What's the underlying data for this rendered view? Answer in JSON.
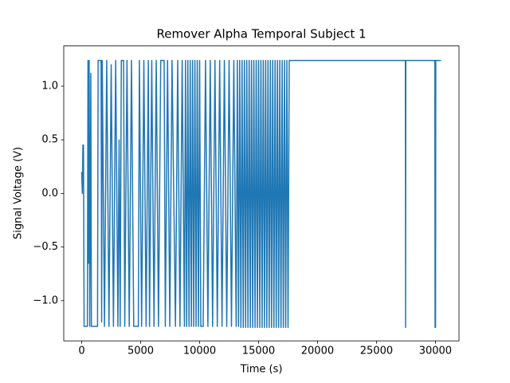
{
  "chart_data": {
    "type": "line",
    "title": "Remover Alpha Temporal Subject 1",
    "x_label": "Time (s)",
    "y_label": "Signal Voltage (V)",
    "x": [
      0,
      50,
      100,
      150,
      200,
      480,
      530,
      580,
      630,
      680,
      770,
      820,
      1340,
      1390,
      1640,
      1690,
      1740,
      1930,
      2120,
      2310,
      2500,
      2690,
      2880,
      3070,
      3170,
      3260,
      3360,
      3550,
      3650,
      3840,
      4030,
      4220,
      4410,
      4800,
      4890,
      5080,
      5270,
      5460,
      5650,
      5750,
      5940,
      6130,
      6320,
      6510,
      6700,
      6990,
      7090,
      7280,
      7470,
      7660,
      7950,
      8140,
      8330,
      8520,
      8710,
      8800,
      8900,
      9000,
      9100,
      9200,
      9300,
      9400,
      9500,
      9600,
      9700,
      9800,
      9900,
      10000,
      10100,
      10300,
      10500,
      10700,
      10900,
      11100,
      11300,
      11500,
      11700,
      11900,
      12100,
      12300,
      12500,
      12700,
      12900,
      13100,
      13200,
      13300,
      13400,
      13500,
      13600,
      13700,
      13800,
      13900,
      14000,
      14100,
      14200,
      14300,
      14400,
      14500,
      14600,
      14700,
      14800,
      14900,
      15000,
      15100,
      15200,
      15300,
      15400,
      15500,
      15600,
      15700,
      15800,
      15900,
      16000,
      16100,
      16200,
      16300,
      16400,
      16500,
      16600,
      16700,
      16800,
      16900,
      17000,
      17100,
      17200,
      17300,
      17400,
      17500,
      17600,
      27450,
      27470,
      27490,
      29950,
      29970,
      29990,
      30010,
      30030,
      30470
    ],
    "series": [
      {
        "color": "#1f77b4",
        "values": [
          0.2,
          0.0,
          0.45,
          0.45,
          -1.24,
          -1.24,
          1.24,
          -0.65,
          1.24,
          -1.24,
          1.12,
          -1.24,
          -1.24,
          1.24,
          1.24,
          -1.2,
          1.24,
          -1.24,
          1.24,
          -1.24,
          1.2,
          -1.24,
          1.24,
          -1.24,
          0.5,
          -1.24,
          1.24,
          1.24,
          -1.24,
          1.24,
          -1.24,
          1.24,
          -1.24,
          -1.24,
          1.24,
          -1.24,
          1.24,
          -1.24,
          1.24,
          -1.24,
          1.24,
          -1.24,
          1.24,
          -1.24,
          1.24,
          1.24,
          -1.24,
          1.24,
          -1.24,
          1.24,
          -1.24,
          1.24,
          -1.24,
          1.24,
          -1.24,
          1.24,
          -1.24,
          1.24,
          -1.24,
          1.24,
          -1.24,
          1.24,
          -1.24,
          1.24,
          -1.24,
          1.24,
          -1.24,
          1.24,
          -1.24,
          -1.24,
          1.24,
          -1.24,
          1.24,
          -1.24,
          1.24,
          -1.24,
          1.24,
          -1.24,
          1.24,
          -1.24,
          1.24,
          -1.24,
          1.24,
          -1.24,
          1.24,
          -1.24,
          1.24,
          -1.25,
          1.24,
          -1.25,
          1.24,
          -1.25,
          1.24,
          -1.25,
          1.24,
          -1.25,
          1.24,
          -1.25,
          1.24,
          -1.25,
          1.24,
          -1.25,
          1.24,
          -1.25,
          1.24,
          -1.25,
          1.24,
          -1.25,
          1.24,
          -1.25,
          1.24,
          -1.25,
          1.24,
          -1.25,
          1.24,
          -1.25,
          1.24,
          -1.25,
          1.24,
          -1.25,
          1.24,
          -1.25,
          1.24,
          -1.25,
          1.24,
          -1.25,
          1.24,
          -1.25,
          1.24,
          1.24,
          -1.25,
          1.24,
          1.24,
          -1.25,
          1.24,
          -1.25,
          1.24,
          1.24
        ]
      }
    ],
    "xlim": [
      -1525,
      32000
    ],
    "ylim": [
      -1.375,
      1.375
    ],
    "xticks": [
      0,
      5000,
      10000,
      15000,
      20000,
      25000,
      30000
    ],
    "yticks": [
      {
        "value": -1.0,
        "label": "−1.0"
      },
      {
        "value": -0.5,
        "label": "−0.5"
      },
      {
        "value": 0.0,
        "label": "0.0"
      },
      0.5,
      {
        "value": 1.0,
        "label": "1.0"
      }
    ],
    "grid": false
  }
}
